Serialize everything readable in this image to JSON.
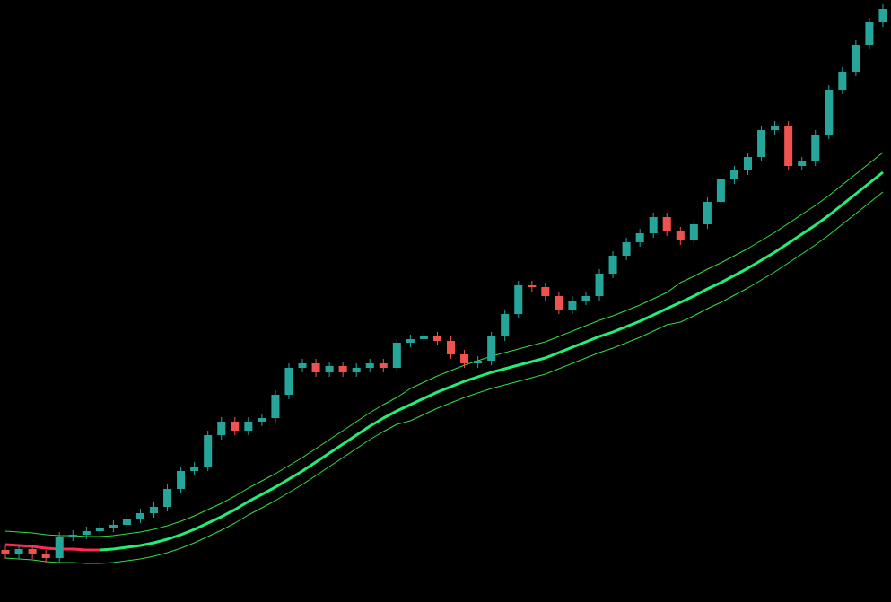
{
  "chart_data": {
    "type": "candlestick",
    "ylim": [
      0,
      671
    ],
    "up_color": "#26a69a",
    "down_color": "#ef5350",
    "open": [
      58,
      53,
      59,
      53,
      49,
      73,
      75,
      79,
      83,
      86,
      93,
      99,
      106,
      126,
      146,
      151,
      186,
      201,
      191,
      201,
      205,
      231,
      261,
      266,
      256,
      263,
      256,
      261,
      266,
      261,
      289,
      293,
      296,
      291,
      276,
      266,
      269,
      296,
      321,
      353,
      351,
      341,
      326,
      336,
      341,
      366,
      386,
      401,
      411,
      429,
      413,
      403,
      421,
      446,
      471,
      481,
      496,
      526,
      531,
      486,
      491,
      521,
      571,
      591,
      621,
      646
    ],
    "high": [
      63,
      64,
      64,
      58,
      78,
      80,
      84,
      88,
      91,
      98,
      104,
      111,
      131,
      151,
      156,
      191,
      206,
      206,
      206,
      210,
      236,
      266,
      271,
      271,
      268,
      268,
      266,
      271,
      271,
      294,
      298,
      301,
      301,
      296,
      281,
      274,
      301,
      326,
      358,
      358,
      356,
      346,
      341,
      346,
      371,
      391,
      406,
      416,
      434,
      434,
      418,
      426,
      451,
      476,
      486,
      501,
      531,
      536,
      536,
      496,
      526,
      576,
      596,
      626,
      651,
      666
    ],
    "low": [
      48,
      48,
      48,
      44,
      44,
      68,
      70,
      74,
      78,
      81,
      88,
      94,
      101,
      121,
      141,
      146,
      181,
      186,
      186,
      196,
      200,
      226,
      256,
      251,
      251,
      251,
      251,
      256,
      256,
      256,
      284,
      288,
      286,
      271,
      261,
      261,
      264,
      291,
      316,
      346,
      336,
      321,
      321,
      331,
      336,
      361,
      381,
      396,
      406,
      408,
      398,
      398,
      416,
      441,
      466,
      476,
      491,
      521,
      481,
      481,
      486,
      516,
      566,
      586,
      616,
      641
    ],
    "close": [
      53,
      59,
      53,
      49,
      73,
      75,
      79,
      83,
      86,
      93,
      99,
      106,
      126,
      146,
      151,
      186,
      201,
      191,
      201,
      205,
      231,
      261,
      266,
      256,
      263,
      256,
      261,
      266,
      261,
      289,
      293,
      296,
      291,
      276,
      266,
      269,
      296,
      321,
      353,
      351,
      341,
      326,
      336,
      341,
      366,
      386,
      401,
      411,
      429,
      413,
      403,
      421,
      446,
      471,
      481,
      496,
      526,
      531,
      486,
      491,
      521,
      571,
      591,
      621,
      646,
      661
    ],
    "series": [
      {
        "color": "#ff2a55",
        "width": 3,
        "values": [
          64,
          63,
          62,
          60,
          59,
          59,
          58,
          58,
          null,
          null,
          null,
          null,
          null,
          null,
          null,
          null,
          null,
          null,
          null,
          null,
          null,
          null,
          null,
          null,
          null,
          null,
          null,
          null,
          null,
          null,
          null,
          null,
          null,
          null,
          null,
          null,
          null,
          null,
          null,
          null,
          null,
          null,
          null,
          null,
          null,
          null,
          null,
          null,
          null,
          null,
          null,
          null,
          null,
          null,
          null,
          null,
          null,
          null,
          null,
          null,
          null,
          null,
          null,
          null,
          null,
          null
        ]
      },
      {
        "color": "#22ee77",
        "width": 3,
        "values": [
          null,
          null,
          null,
          null,
          null,
          null,
          null,
          58,
          59,
          61,
          63,
          66,
          70,
          75,
          81,
          88,
          95,
          103,
          112,
          120,
          128,
          137,
          146,
          156,
          166,
          176,
          186,
          196,
          205,
          213,
          220,
          227,
          234,
          240,
          246,
          251,
          256,
          260,
          264,
          268,
          272,
          278,
          284,
          290,
          296,
          301,
          307,
          313,
          320,
          327,
          334,
          341,
          349,
          356,
          364,
          372,
          381,
          390,
          400,
          410,
          420,
          431,
          443,
          455,
          467,
          479
        ]
      },
      {
        "color": "#33dd44",
        "width": 1,
        "values": [
          79,
          78,
          77,
          75,
          74,
          74,
          73,
          73,
          74,
          76,
          78,
          81,
          85,
          90,
          96,
          103,
          110,
          118,
          127,
          135,
          143,
          152,
          161,
          171,
          181,
          191,
          201,
          211,
          220,
          228,
          238,
          245,
          252,
          258,
          264,
          269,
          274,
          278,
          282,
          286,
          290,
          296,
          302,
          308,
          314,
          319,
          325,
          331,
          338,
          345,
          356,
          363,
          371,
          378,
          386,
          394,
          403,
          412,
          422,
          432,
          442,
          453,
          465,
          477,
          489,
          501
        ]
      },
      {
        "color": "#33dd44",
        "width": 1,
        "values": [
          49,
          48,
          47,
          45,
          44,
          44,
          43,
          43,
          44,
          46,
          48,
          51,
          55,
          60,
          66,
          73,
          80,
          88,
          97,
          105,
          113,
          122,
          131,
          141,
          151,
          161,
          171,
          181,
          190,
          198,
          202,
          209,
          216,
          222,
          228,
          233,
          238,
          242,
          246,
          250,
          254,
          260,
          266,
          272,
          278,
          283,
          289,
          295,
          302,
          309,
          312,
          319,
          327,
          334,
          342,
          350,
          359,
          368,
          378,
          388,
          398,
          409,
          421,
          433,
          445,
          457
        ]
      }
    ]
  }
}
